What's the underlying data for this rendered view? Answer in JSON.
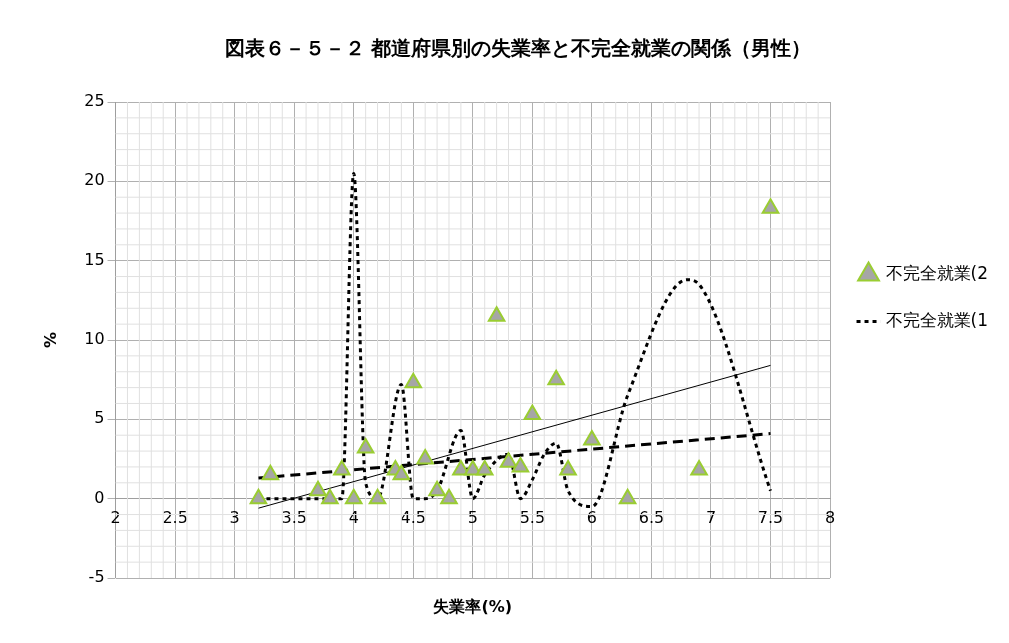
{
  "chart_data": {
    "type": "scatter",
    "title": "図表６－５－２ 都道府県別の失業率と不完全就業の関係（男性）",
    "xlabel": "失業率(%)",
    "ylabel": "%",
    "xlim": [
      2,
      8
    ],
    "xticks": [
      2,
      2.5,
      3,
      3.5,
      4,
      4.5,
      5,
      5.5,
      6,
      6.5,
      7,
      7.5,
      8
    ],
    "ylim": [
      -5,
      25
    ],
    "yticks": [
      -5,
      0,
      5,
      10,
      15,
      20,
      25
    ],
    "grid": true,
    "legend": "right",
    "series": [
      {
        "name": "不完全就業(2",
        "type": "scatter",
        "marker": "triangle",
        "color": "#a6a6a6",
        "x": [
          3.2,
          3.3,
          3.7,
          3.8,
          3.9,
          4.0,
          4.1,
          4.2,
          4.35,
          4.4,
          4.5,
          4.6,
          4.7,
          4.8,
          4.9,
          5.0,
          5.1,
          5.2,
          5.3,
          5.4,
          5.5,
          5.7,
          5.8,
          6.0,
          6.3,
          6.9,
          7.5
        ],
        "values": [
          0,
          1.5,
          0.5,
          0,
          1.8,
          0,
          3.2,
          0,
          1.8,
          1.5,
          7.3,
          2.5,
          0.5,
          0,
          1.8,
          1.8,
          1.8,
          11.5,
          2.3,
          2.0,
          5.3,
          7.5,
          1.8,
          3.7,
          0,
          1.8,
          18.3
        ]
      },
      {
        "name": "不完全就業(1",
        "type": "line",
        "marker": "none",
        "line_style": "dotted",
        "color": "#000000",
        "x": [
          3.2,
          3.3,
          3.7,
          3.8,
          3.9,
          4.0,
          4.1,
          4.2,
          4.4,
          4.5,
          4.6,
          4.7,
          4.9,
          5.0,
          5.1,
          5.3,
          5.4,
          5.5,
          5.6,
          5.7,
          5.8,
          6.0,
          6.3,
          6.8,
          6.9,
          7.5
        ],
        "values": [
          0,
          0,
          0,
          0,
          0,
          20.5,
          1,
          0,
          7.2,
          0,
          0,
          0.5,
          4.3,
          0,
          1.5,
          2.8,
          0,
          1.2,
          2.8,
          3.5,
          0.5,
          -0.5,
          6.5,
          13.8,
          13.5,
          0.5
        ]
      },
      {
        "type": "line",
        "marker": "none",
        "line_style": "solid",
        "color": "#000000",
        "x": [
          3.2,
          7.5
        ],
        "values": [
          -0.6,
          8.4
        ]
      },
      {
        "type": "line",
        "marker": "none",
        "line_style": "dashed",
        "color": "#000000",
        "x": [
          3.2,
          7.5
        ],
        "values": [
          1.3,
          4.1
        ]
      }
    ]
  }
}
